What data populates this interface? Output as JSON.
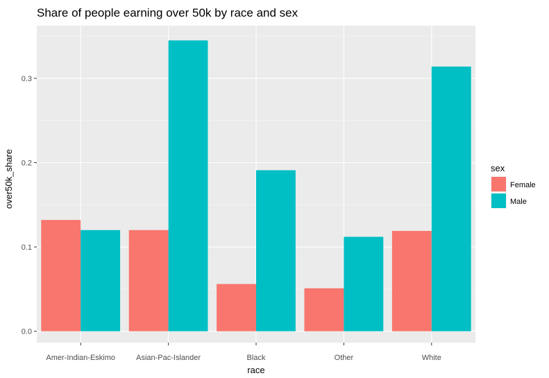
{
  "chart_data": {
    "type": "bar",
    "title": "Share of people earning over 50k by race and sex",
    "xlabel": "race",
    "ylabel": "over50k_share",
    "categories": [
      "Amer-Indian-Eskimo",
      "Asian-Pac-Islander",
      "Black",
      "Other",
      "White"
    ],
    "series": [
      {
        "name": "Female",
        "color": "#F8766D",
        "values": [
          0.132,
          0.12,
          0.056,
          0.051,
          0.119
        ]
      },
      {
        "name": "Male",
        "color": "#00BFC4",
        "values": [
          0.12,
          0.345,
          0.191,
          0.112,
          0.314
        ]
      }
    ],
    "yticks": [
      0.0,
      0.1,
      0.2,
      0.3
    ],
    "ytick_labels": [
      "0.0",
      "0.1",
      "0.2",
      "0.3"
    ],
    "ylim": [
      -0.0135,
      0.3625
    ],
    "legend": {
      "title": "sex",
      "position": "right"
    },
    "grid": true,
    "panel_background": "#EBEBEB"
  }
}
